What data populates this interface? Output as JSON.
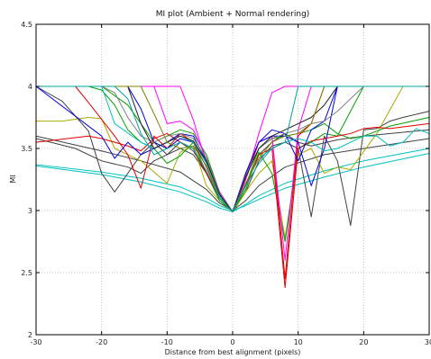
{
  "chart_data": {
    "type": "line",
    "title": "MI plot (Ambient + Normal rendering)",
    "xlabel": "Distance from best alignment (pixels)",
    "ylabel": "MI",
    "xlim": [
      -30,
      30
    ],
    "ylim": [
      2,
      4.5
    ],
    "x_ticks": [
      -30,
      -20,
      -10,
      0,
      10,
      20,
      30
    ],
    "x_tick_labels": [
      "-30",
      "-20",
      "-10",
      "0",
      "10",
      "20",
      "30"
    ],
    "y_ticks": [
      2,
      2.5,
      3,
      3.5,
      4,
      4.5
    ],
    "y_tick_labels": [
      "2",
      "2.5",
      "3",
      "3.5",
      "4",
      "4.5"
    ],
    "grid": true,
    "legend": "none",
    "series": [
      {
        "color": "#00bfbf",
        "x": [
          -30,
          -20,
          -14,
          -8,
          -4,
          -2,
          0,
          2,
          4,
          8,
          14,
          20,
          30
        ],
        "y": [
          3.37,
          3.31,
          3.26,
          3.19,
          3.1,
          3.04,
          3.0,
          3.04,
          3.09,
          3.18,
          3.27,
          3.35,
          3.46
        ]
      },
      {
        "color": "#00bfbf",
        "x": [
          -30,
          -20,
          -14,
          -8,
          -4,
          -2,
          0,
          2,
          4,
          8,
          14,
          20,
          30
        ],
        "y": [
          3.36,
          3.29,
          3.23,
          3.15,
          3.07,
          3.02,
          2.99,
          3.05,
          3.12,
          3.22,
          3.32,
          3.4,
          3.5
        ]
      },
      {
        "color": "#404040",
        "x": [
          -30,
          -20,
          -14,
          -8,
          -4,
          -2,
          0,
          2,
          4,
          8,
          14,
          20,
          30
        ],
        "y": [
          3.6,
          3.48,
          3.4,
          3.31,
          3.17,
          3.06,
          3.0,
          3.08,
          3.2,
          3.35,
          3.45,
          3.5,
          3.58
        ]
      },
      {
        "color": "#404040",
        "x": [
          -30,
          -26,
          -22,
          -20,
          -18,
          -16,
          -14,
          -12,
          -10,
          -8,
          -6,
          -4,
          -2,
          0,
          2,
          4,
          6,
          8,
          10,
          12,
          14,
          16,
          18,
          20,
          22,
          24,
          26,
          30
        ],
        "y": [
          4.0,
          3.88,
          3.64,
          3.3,
          3.15,
          3.3,
          3.45,
          3.55,
          3.45,
          3.55,
          3.48,
          3.3,
          3.1,
          2.99,
          3.15,
          3.4,
          3.52,
          3.55,
          3.5,
          2.95,
          3.6,
          3.4,
          2.88,
          3.65,
          3.66,
          3.72,
          3.75,
          3.8
        ]
      },
      {
        "color": "#404040",
        "x": [
          -30,
          -24,
          -20,
          -16,
          -14,
          -12,
          -10,
          -8,
          -6,
          -4,
          -2,
          0,
          2,
          4,
          6,
          8,
          10,
          12,
          16,
          20,
          30
        ],
        "y": [
          3.58,
          3.5,
          3.4,
          3.35,
          3.3,
          3.4,
          3.45,
          3.5,
          3.45,
          3.3,
          3.1,
          2.99,
          3.2,
          3.45,
          3.55,
          3.62,
          3.55,
          3.52,
          3.57,
          3.6,
          3.65
        ]
      },
      {
        "color": "#aaaa00",
        "x": [
          -30,
          -26,
          -22,
          -20,
          -18,
          -14,
          -10,
          -8,
          -6,
          -4,
          -2,
          0,
          2,
          4,
          6,
          8,
          10,
          12,
          14,
          16,
          18,
          22,
          26,
          30
        ],
        "y": [
          3.72,
          3.72,
          3.75,
          3.74,
          3.5,
          3.4,
          3.22,
          3.47,
          3.52,
          3.2,
          3.08,
          2.99,
          3.15,
          3.3,
          3.4,
          2.78,
          3.45,
          3.5,
          3.3,
          3.35,
          3.33,
          3.62,
          4.0,
          4.0
        ]
      },
      {
        "color": "#00a000",
        "x": [
          -30,
          -22,
          -20,
          -18,
          -16,
          -14,
          -12,
          -10,
          -8,
          -6,
          -4,
          -2,
          0,
          2,
          4,
          6,
          8,
          10,
          12,
          14,
          16,
          20,
          30
        ],
        "y": [
          4.0,
          4.0,
          3.97,
          3.85,
          3.65,
          3.55,
          3.5,
          3.38,
          3.44,
          3.55,
          3.3,
          3.08,
          2.99,
          3.17,
          3.47,
          3.3,
          2.75,
          3.5,
          3.55,
          3.62,
          3.6,
          4.0,
          4.0
        ]
      },
      {
        "color": "#00a000",
        "x": [
          -30,
          -20,
          -16,
          -14,
          -12,
          -10,
          -8,
          -6,
          -4,
          -2,
          0,
          2,
          4,
          6,
          8,
          10,
          12,
          14,
          16,
          18,
          20,
          24,
          30
        ],
        "y": [
          4.0,
          4.0,
          3.85,
          3.7,
          3.55,
          3.6,
          3.65,
          3.62,
          3.45,
          3.15,
          2.99,
          3.2,
          3.5,
          3.58,
          3.6,
          3.62,
          3.65,
          3.7,
          3.62,
          3.58,
          3.6,
          3.68,
          3.75
        ]
      },
      {
        "color": "#e00000",
        "x": [
          -30,
          -22,
          -20,
          -16,
          -14,
          -12,
          -10,
          -8,
          -6,
          -4,
          -2,
          0,
          2,
          4,
          6,
          8,
          10,
          12,
          14,
          16,
          18,
          20,
          22,
          24,
          30
        ],
        "y": [
          3.55,
          3.6,
          3.58,
          3.52,
          3.48,
          3.58,
          3.62,
          3.55,
          3.5,
          3.3,
          3.1,
          2.99,
          3.2,
          3.45,
          3.5,
          2.38,
          3.5,
          3.56,
          3.58,
          3.6,
          3.62,
          3.66,
          3.67,
          3.66,
          3.7
        ]
      },
      {
        "color": "#e00000",
        "x": [
          -30,
          -24,
          -22,
          -18,
          -16,
          -14,
          -12,
          -10,
          -8,
          -6,
          -4,
          -2,
          0,
          2,
          4,
          6,
          8,
          10,
          12,
          14,
          16,
          20,
          30
        ],
        "y": [
          4.0,
          4.0,
          3.87,
          3.6,
          3.45,
          3.18,
          3.6,
          3.5,
          3.62,
          3.55,
          3.35,
          3.1,
          2.99,
          3.25,
          3.55,
          3.6,
          2.45,
          3.6,
          3.7,
          4.0,
          4.0,
          4.0,
          4.0
        ]
      },
      {
        "color": "#ff00ff",
        "x": [
          -30,
          -8,
          -6,
          -4,
          -2,
          0,
          2,
          4,
          6,
          8,
          10,
          12,
          30
        ],
        "y": [
          4.0,
          4.0,
          3.73,
          3.38,
          3.12,
          2.99,
          3.25,
          3.62,
          3.95,
          4.0,
          4.0,
          4.0,
          4.0
        ]
      },
      {
        "color": "#ff00ff",
        "x": [
          -30,
          -12,
          -10,
          -8,
          -6,
          -4,
          -2,
          0,
          2,
          4,
          6,
          8,
          10,
          12,
          30
        ],
        "y": [
          4.0,
          4.0,
          3.7,
          3.72,
          3.65,
          3.42,
          3.15,
          2.99,
          3.3,
          3.55,
          3.6,
          2.6,
          3.65,
          4.0,
          4.0
        ]
      },
      {
        "color": "#0000dd",
        "x": [
          -30,
          -20,
          -18,
          -16,
          -14,
          -12,
          -10,
          -8,
          -6,
          -4,
          -2,
          0,
          2,
          4,
          6,
          8,
          10,
          12,
          14,
          16,
          18,
          20,
          30
        ],
        "y": [
          4.0,
          3.6,
          3.42,
          3.55,
          3.45,
          3.5,
          3.55,
          3.62,
          3.6,
          3.4,
          3.12,
          2.99,
          3.3,
          3.55,
          3.65,
          3.62,
          3.4,
          3.65,
          3.72,
          4.0,
          4.0,
          4.0,
          4.0
        ]
      },
      {
        "color": "#0000dd",
        "x": [
          -30,
          -16,
          -14,
          -12,
          -10,
          -8,
          -6,
          -4,
          -2,
          0,
          2,
          4,
          6,
          8,
          10,
          12,
          14,
          16,
          30
        ],
        "y": [
          4.0,
          4.0,
          3.82,
          3.55,
          3.5,
          3.58,
          3.55,
          3.4,
          3.12,
          2.99,
          3.3,
          3.55,
          3.6,
          3.6,
          3.55,
          3.2,
          3.5,
          4.0,
          4.0
        ]
      },
      {
        "color": "#00bfbf",
        "x": [
          -30,
          -20,
          -18,
          -14,
          -12,
          -10,
          -8,
          -6,
          -4,
          -2,
          0,
          2,
          4,
          6,
          8,
          10,
          12,
          14,
          16,
          18,
          20,
          22,
          24,
          26,
          28,
          30
        ],
        "y": [
          4.0,
          4.0,
          3.7,
          3.55,
          3.5,
          3.55,
          3.6,
          3.55,
          3.38,
          3.12,
          2.99,
          3.22,
          3.42,
          3.5,
          3.55,
          3.58,
          3.55,
          3.48,
          3.5,
          3.55,
          3.6,
          3.6,
          3.52,
          3.55,
          3.66,
          3.62
        ]
      },
      {
        "color": "#808080",
        "x": [
          -30,
          -20,
          -18,
          -16,
          -14,
          -12,
          -10,
          -8,
          -6,
          -4,
          -2,
          0,
          2,
          4,
          6,
          8,
          10,
          12,
          14,
          16,
          18,
          20,
          22,
          24,
          30
        ],
        "y": [
          4.0,
          4.0,
          3.95,
          3.75,
          3.6,
          3.55,
          3.6,
          3.62,
          3.58,
          3.42,
          3.14,
          2.99,
          3.28,
          3.5,
          3.58,
          3.62,
          3.65,
          3.7,
          3.72,
          3.8,
          3.9,
          4.0,
          4.0,
          4.0,
          4.0
        ]
      },
      {
        "color": "#202020",
        "x": [
          -30,
          -16,
          -14,
          -12,
          -10,
          -8,
          -6,
          -4,
          -2,
          0,
          2,
          4,
          6,
          8,
          10,
          12,
          14,
          16,
          30
        ],
        "y": [
          4.0,
          4.0,
          3.7,
          3.5,
          3.55,
          3.6,
          3.56,
          3.4,
          3.13,
          2.99,
          3.27,
          3.5,
          3.6,
          3.65,
          3.7,
          3.75,
          3.85,
          4.0,
          4.0
        ]
      },
      {
        "color": "#808000",
        "x": [
          -30,
          -14,
          -12,
          -10,
          -8,
          -6,
          -4,
          -2,
          0,
          2,
          4,
          6,
          8,
          10,
          12,
          14,
          30
        ],
        "y": [
          4.0,
          4.0,
          3.78,
          3.55,
          3.5,
          3.52,
          3.36,
          3.1,
          2.99,
          3.22,
          3.42,
          3.55,
          3.6,
          3.62,
          3.7,
          4.0,
          4.0
        ]
      },
      {
        "color": "#00a0a0",
        "x": [
          -30,
          -18,
          -16,
          -14,
          -12,
          -10,
          -8,
          -6,
          -4,
          -2,
          0,
          2,
          4,
          6,
          8,
          10,
          12,
          30
        ],
        "y": [
          4.0,
          4.0,
          3.9,
          3.62,
          3.45,
          3.5,
          3.55,
          3.5,
          3.32,
          3.1,
          2.99,
          3.2,
          3.38,
          3.5,
          3.55,
          4.0,
          4.0,
          4.0
        ]
      }
    ]
  }
}
